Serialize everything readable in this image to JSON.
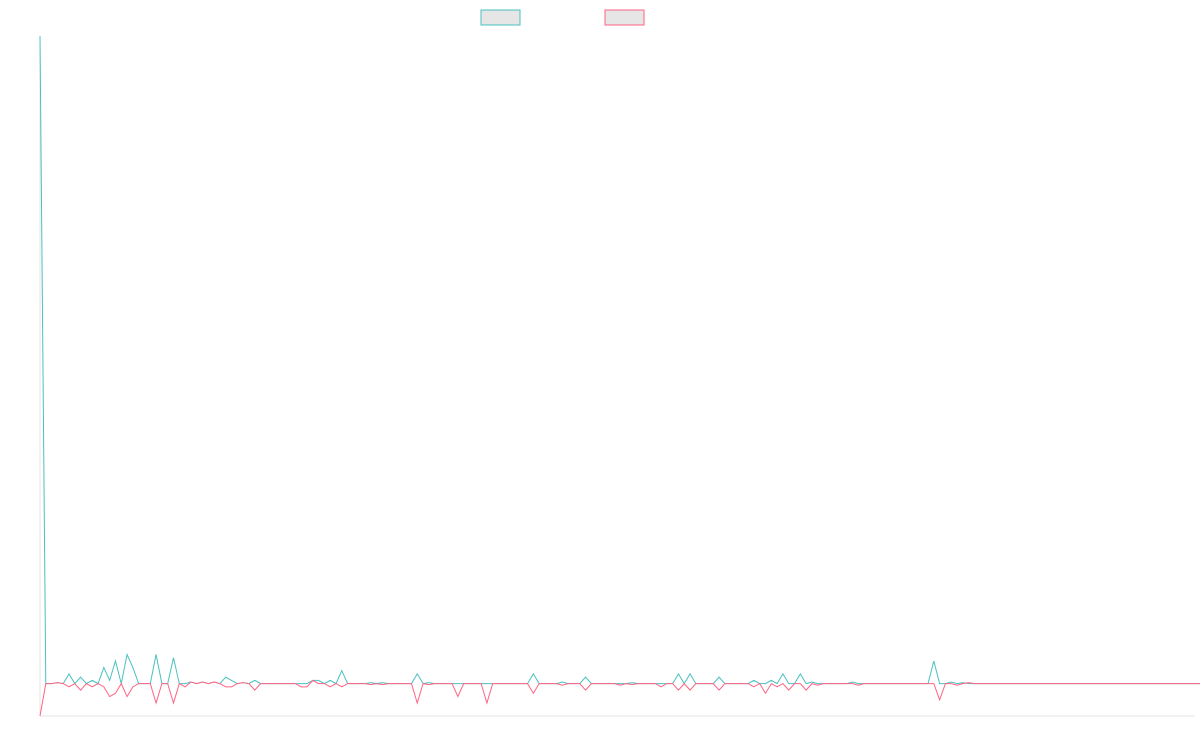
{
  "chart_data": {
    "type": "line",
    "title": "",
    "xlabel": "",
    "ylabel": "",
    "grid": false,
    "legend_position": "top-center",
    "x_count": 200,
    "ylim": [
      -1,
      20
    ],
    "series": [
      {
        "color": "#4bc0c0",
        "legend_fill": "#e6e6e6",
        "values": [
          20,
          0,
          0,
          0.03,
          0,
          0.3,
          0,
          0.2,
          0,
          0.1,
          0,
          0.5,
          0.1,
          0.7,
          0,
          0.9,
          0.5,
          0,
          0,
          0,
          0.9,
          0,
          0,
          0.8,
          0,
          0,
          0.05,
          0,
          0.05,
          0,
          0.05,
          0,
          0.2,
          0.1,
          0,
          0.03,
          0,
          0.1,
          0,
          0,
          0,
          0,
          0,
          0,
          0,
          0,
          0,
          0.1,
          0.1,
          0,
          0.1,
          0,
          0.4,
          0,
          0,
          0,
          0,
          0.03,
          0,
          0.03,
          0,
          0,
          0,
          0,
          0,
          0.3,
          0,
          0.03,
          0,
          0,
          0,
          0,
          0,
          0,
          0,
          0,
          0,
          0,
          0,
          0,
          0,
          0,
          0,
          0,
          0,
          0.3,
          0,
          0,
          0,
          0,
          0.05,
          0,
          0,
          0,
          0.2,
          0,
          0,
          0,
          0,
          0,
          0,
          0,
          0.03,
          0,
          0,
          0,
          0,
          0,
          0,
          0,
          0.3,
          0,
          0.3,
          0,
          0,
          0,
          0,
          0.2,
          0,
          0,
          0,
          0,
          0,
          0.1,
          0,
          0,
          0.1,
          0,
          0.3,
          0,
          0,
          0.3,
          0,
          0.05,
          0,
          0,
          0,
          0,
          0,
          0,
          0.05,
          0,
          0,
          0,
          0,
          0,
          0,
          0,
          0,
          0,
          0,
          0,
          0,
          0,
          0.7,
          0,
          0,
          0.05,
          0,
          0.03,
          0,
          0,
          0,
          0,
          0,
          0,
          0,
          0,
          0,
          0,
          0,
          0,
          0,
          0,
          0,
          0,
          0,
          0,
          0,
          0,
          0,
          0,
          0,
          0,
          0,
          0,
          0,
          0,
          0,
          0,
          0,
          0,
          0,
          0,
          0,
          0,
          0,
          0,
          0,
          0,
          0,
          0,
          0,
          0,
          0,
          0,
          0,
          0,
          0,
          0,
          0
        ]
      },
      {
        "color": "#ff6384",
        "legend_fill": "#e6e6e6",
        "values": [
          -1,
          0,
          0,
          0.03,
          0,
          -0.1,
          0,
          -0.2,
          0,
          -0.1,
          0,
          -0.1,
          -0.4,
          -0.3,
          0,
          -0.4,
          -0.1,
          0,
          0,
          0,
          -0.6,
          0,
          0,
          -0.6,
          0,
          -0.1,
          0.05,
          0,
          0.05,
          0,
          0.05,
          0,
          -0.1,
          -0.1,
          0,
          0.03,
          0,
          -0.2,
          0,
          0,
          0,
          0,
          0,
          0,
          0,
          -0.1,
          -0.1,
          0.1,
          0,
          0,
          -0.1,
          0,
          -0.1,
          0,
          0,
          0,
          0,
          -0.03,
          0,
          -0.03,
          0,
          0,
          0,
          0,
          0,
          -0.6,
          0,
          -0.03,
          0,
          0,
          0,
          0,
          -0.4,
          0,
          0,
          0,
          0,
          -0.6,
          0,
          0,
          0,
          0,
          0,
          0,
          0,
          -0.3,
          0,
          0,
          0,
          0,
          -0.05,
          0,
          0,
          0,
          -0.2,
          0,
          0,
          0,
          0,
          0,
          -0.05,
          0,
          -0.03,
          0,
          0,
          0,
          0,
          -0.1,
          0,
          0,
          -0.2,
          0,
          -0.2,
          0,
          0,
          0,
          0,
          -0.2,
          0,
          0,
          0,
          0,
          0,
          -0.1,
          0,
          -0.3,
          0,
          -0.1,
          0,
          -0.2,
          0,
          0,
          -0.2,
          0,
          -0.05,
          0,
          0,
          0,
          0,
          0,
          0,
          -0.05,
          0,
          0,
          0,
          0,
          0,
          0,
          0,
          0,
          0,
          0,
          0,
          0,
          0,
          -0.5,
          0,
          0,
          -0.05,
          0,
          0.03,
          0,
          0,
          0,
          0,
          0,
          0,
          0,
          0,
          0,
          0,
          0,
          0,
          0,
          0,
          0,
          0,
          0,
          0,
          0,
          0,
          0,
          0,
          0,
          0,
          0,
          0,
          0,
          0,
          0,
          0,
          0,
          0,
          0,
          0,
          0,
          0,
          0,
          0,
          0,
          0,
          0,
          0,
          0,
          0,
          0,
          0,
          0,
          0,
          0,
          0,
          0
        ]
      }
    ]
  }
}
